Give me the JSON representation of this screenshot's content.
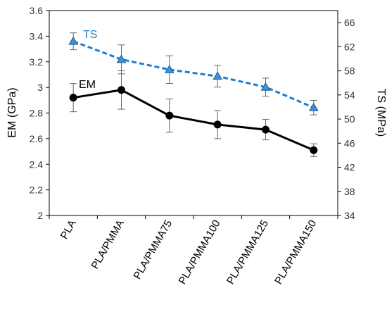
{
  "chart_data": {
    "type": "line",
    "categories": [
      "PLA",
      "PLA/PMMA",
      "PLA/PMMA75",
      "PLA/PMMA100",
      "PLA/PMMA125",
      "PLA/PMMA150"
    ],
    "y_left": {
      "label": "EM (GPa)",
      "range": [
        2,
        3.6
      ],
      "ticks": [
        "2",
        "2.2",
        "2.4",
        "2.6",
        "2.8",
        "3",
        "3.2",
        "3.4",
        "3.6"
      ]
    },
    "y_right": {
      "label": "TS (MPa)",
      "range": [
        34,
        68
      ],
      "ticks": [
        "34",
        "38",
        "42",
        "46",
        "50",
        "54",
        "58",
        "62",
        "66"
      ]
    },
    "series": [
      {
        "name": "EM",
        "axis": "left",
        "color": "#000000",
        "style": "solid",
        "marker": "circle",
        "values": [
          2.92,
          2.98,
          2.78,
          2.71,
          2.67,
          2.51
        ],
        "errors": [
          0.11,
          0.15,
          0.13,
          0.11,
          0.08,
          0.05
        ]
      },
      {
        "name": "TS",
        "axis": "right",
        "color": "#1a7fd4",
        "style": "dashed",
        "marker": "triangle",
        "values": [
          62.9,
          59.9,
          58.2,
          57.1,
          55.3,
          51.9
        ],
        "errors": [
          1.4,
          2.4,
          2.3,
          1.8,
          1.5,
          1.2
        ]
      }
    ],
    "grid": false
  }
}
